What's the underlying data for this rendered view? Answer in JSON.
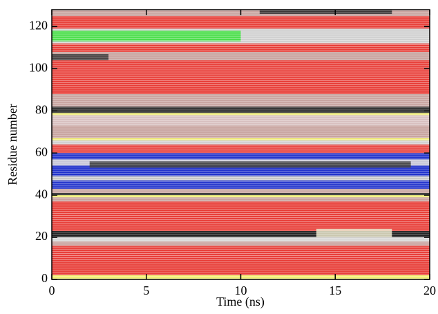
{
  "chart_data": {
    "type": "dssp",
    "x_label": "Time (ns)",
    "y_label": "Residue number",
    "xlim": [
      0,
      20
    ],
    "ylim": [
      0,
      128
    ],
    "xticks": [
      0,
      5,
      10,
      15,
      20
    ],
    "yticks": [
      0,
      20,
      40,
      60,
      80,
      100,
      120
    ],
    "bands": [
      {
        "from": 0,
        "to": 2,
        "color": "#f2f070"
      },
      {
        "from": 2,
        "to": 16,
        "color": "#e8403a"
      },
      {
        "from": 16,
        "to": 18,
        "color": "#c8a4a0"
      },
      {
        "from": 18,
        "to": 20,
        "color": "#d8d8d8"
      },
      {
        "from": 20,
        "to": 23,
        "color": "#222222"
      },
      {
        "from": 23,
        "to": 37,
        "color": "#e8403a"
      },
      {
        "from": 37,
        "to": 39,
        "color": "#c8a4a0"
      },
      {
        "from": 39,
        "to": 40,
        "color": "#f2f070"
      },
      {
        "from": 40,
        "to": 41,
        "color": "#222222"
      },
      {
        "from": 41,
        "to": 43,
        "color": "#c8a4a0"
      },
      {
        "from": 43,
        "to": 47,
        "color": "#2233cc"
      },
      {
        "from": 47,
        "to": 49,
        "color": "#c8c8c8"
      },
      {
        "from": 49,
        "to": 54,
        "color": "#2233cc"
      },
      {
        "from": 54,
        "to": 57,
        "color": "#c8c8d8"
      },
      {
        "from": 57,
        "to": 60,
        "color": "#2233cc"
      },
      {
        "from": 60,
        "to": 64,
        "color": "#e8403a"
      },
      {
        "from": 64,
        "to": 66,
        "color": "#d0d0d0"
      },
      {
        "from": 66,
        "to": 67,
        "color": "#f2f070"
      },
      {
        "from": 67,
        "to": 73,
        "color": "#c8a4a0"
      },
      {
        "from": 73,
        "to": 78,
        "color": "#d8c0c0"
      },
      {
        "from": 78,
        "to": 79,
        "color": "#f2f070"
      },
      {
        "from": 79,
        "to": 82,
        "color": "#222222"
      },
      {
        "from": 82,
        "to": 88,
        "color": "#c8a4a0"
      },
      {
        "from": 88,
        "to": 104,
        "color": "#e8403a"
      },
      {
        "from": 104,
        "to": 108,
        "color": "#c8a4a0"
      },
      {
        "from": 108,
        "to": 112,
        "color": "#e8403a"
      },
      {
        "from": 112,
        "to": 119,
        "color": "#d0d0d0"
      },
      {
        "from": 119,
        "to": 125,
        "color": "#e8403a"
      },
      {
        "from": 125,
        "to": 128,
        "color": "#c8a4a0"
      }
    ],
    "segments": [
      {
        "y0": 113,
        "y1": 118,
        "x0": 0,
        "x1": 10,
        "color": "#33e033"
      },
      {
        "y0": 126,
        "y1": 128,
        "x0": 11,
        "x1": 18,
        "color": "#222222"
      },
      {
        "y0": 53,
        "y1": 56,
        "x0": 2,
        "x1": 19,
        "color": "#333333"
      },
      {
        "y0": 104,
        "y1": 107,
        "x0": 0,
        "x1": 3,
        "color": "#333333"
      },
      {
        "y0": 20,
        "y1": 24,
        "x0": 14,
        "x1": 18,
        "color": "#e8e4c8"
      }
    ]
  }
}
